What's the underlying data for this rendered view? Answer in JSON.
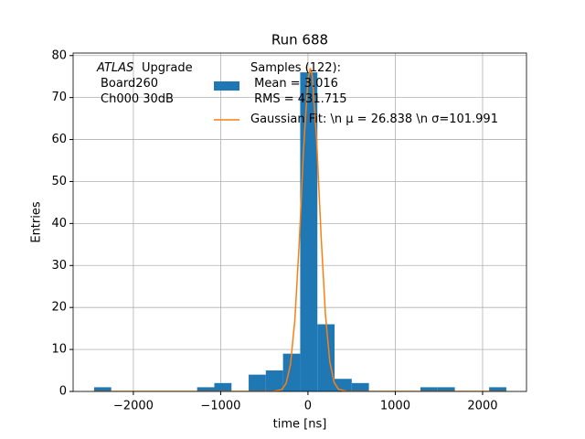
{
  "chart_data": {
    "type": "histogram",
    "title": "Run 688",
    "xlabel": "time [ns]",
    "ylabel": "Entries",
    "annotation": [
      "ATLAS",
      "Upgrade",
      "Board260",
      "Ch000 30dB"
    ],
    "series": [
      {
        "type": "histogram",
        "name": "Samples (122):\n Mean = 3.016\n RMS = 431.715",
        "color": "#1f77b4",
        "bins": [
          -2450,
          -2253.25,
          -2056.5,
          -1859.75,
          -1663,
          -1466.25,
          -1269.5,
          -1072.75,
          -876,
          -679.25,
          -482.5,
          -285.75,
          -89,
          107.75,
          304.5,
          501.25,
          698,
          894.75,
          1091.5,
          1288.25,
          1485,
          1681.75,
          1878.5,
          2075.25,
          2272
        ],
        "values": [
          1,
          0,
          0,
          0,
          0,
          0,
          1,
          2,
          0,
          4,
          5,
          9,
          76,
          16,
          3,
          2,
          0,
          0,
          0,
          1,
          1,
          0,
          0,
          1
        ]
      },
      {
        "type": "line",
        "name": "Gaussian Fit: \\n μ = 26.838 \\n σ=101.991",
        "color": "#ff7f0e",
        "x": [
          -2450,
          -1500,
          -600,
          -400,
          -300,
          -250,
          -200,
          -150,
          -100,
          -50,
          0,
          27,
          50,
          100,
          150,
          200,
          250,
          300,
          350,
          450,
          600,
          1500,
          2272
        ],
        "values": [
          0,
          0,
          0,
          0.01,
          0.45,
          1.93,
          6.47,
          17.1,
          35.5,
          57.9,
          74.4,
          77,
          75.1,
          59.6,
          37.2,
          18.3,
          7.06,
          2.14,
          0.51,
          0.01,
          0,
          0,
          0
        ]
      }
    ],
    "xlim": [
      -2690,
      2503
    ],
    "ylim": [
      0,
      80.6
    ],
    "xticks": [
      {
        "value": -2000,
        "label": "−2000"
      },
      {
        "value": -1000,
        "label": "−1000"
      },
      0,
      1000,
      2000
    ],
    "yticks": [
      0,
      10,
      20,
      30,
      40,
      50,
      60,
      70,
      80
    ],
    "grid": true
  }
}
